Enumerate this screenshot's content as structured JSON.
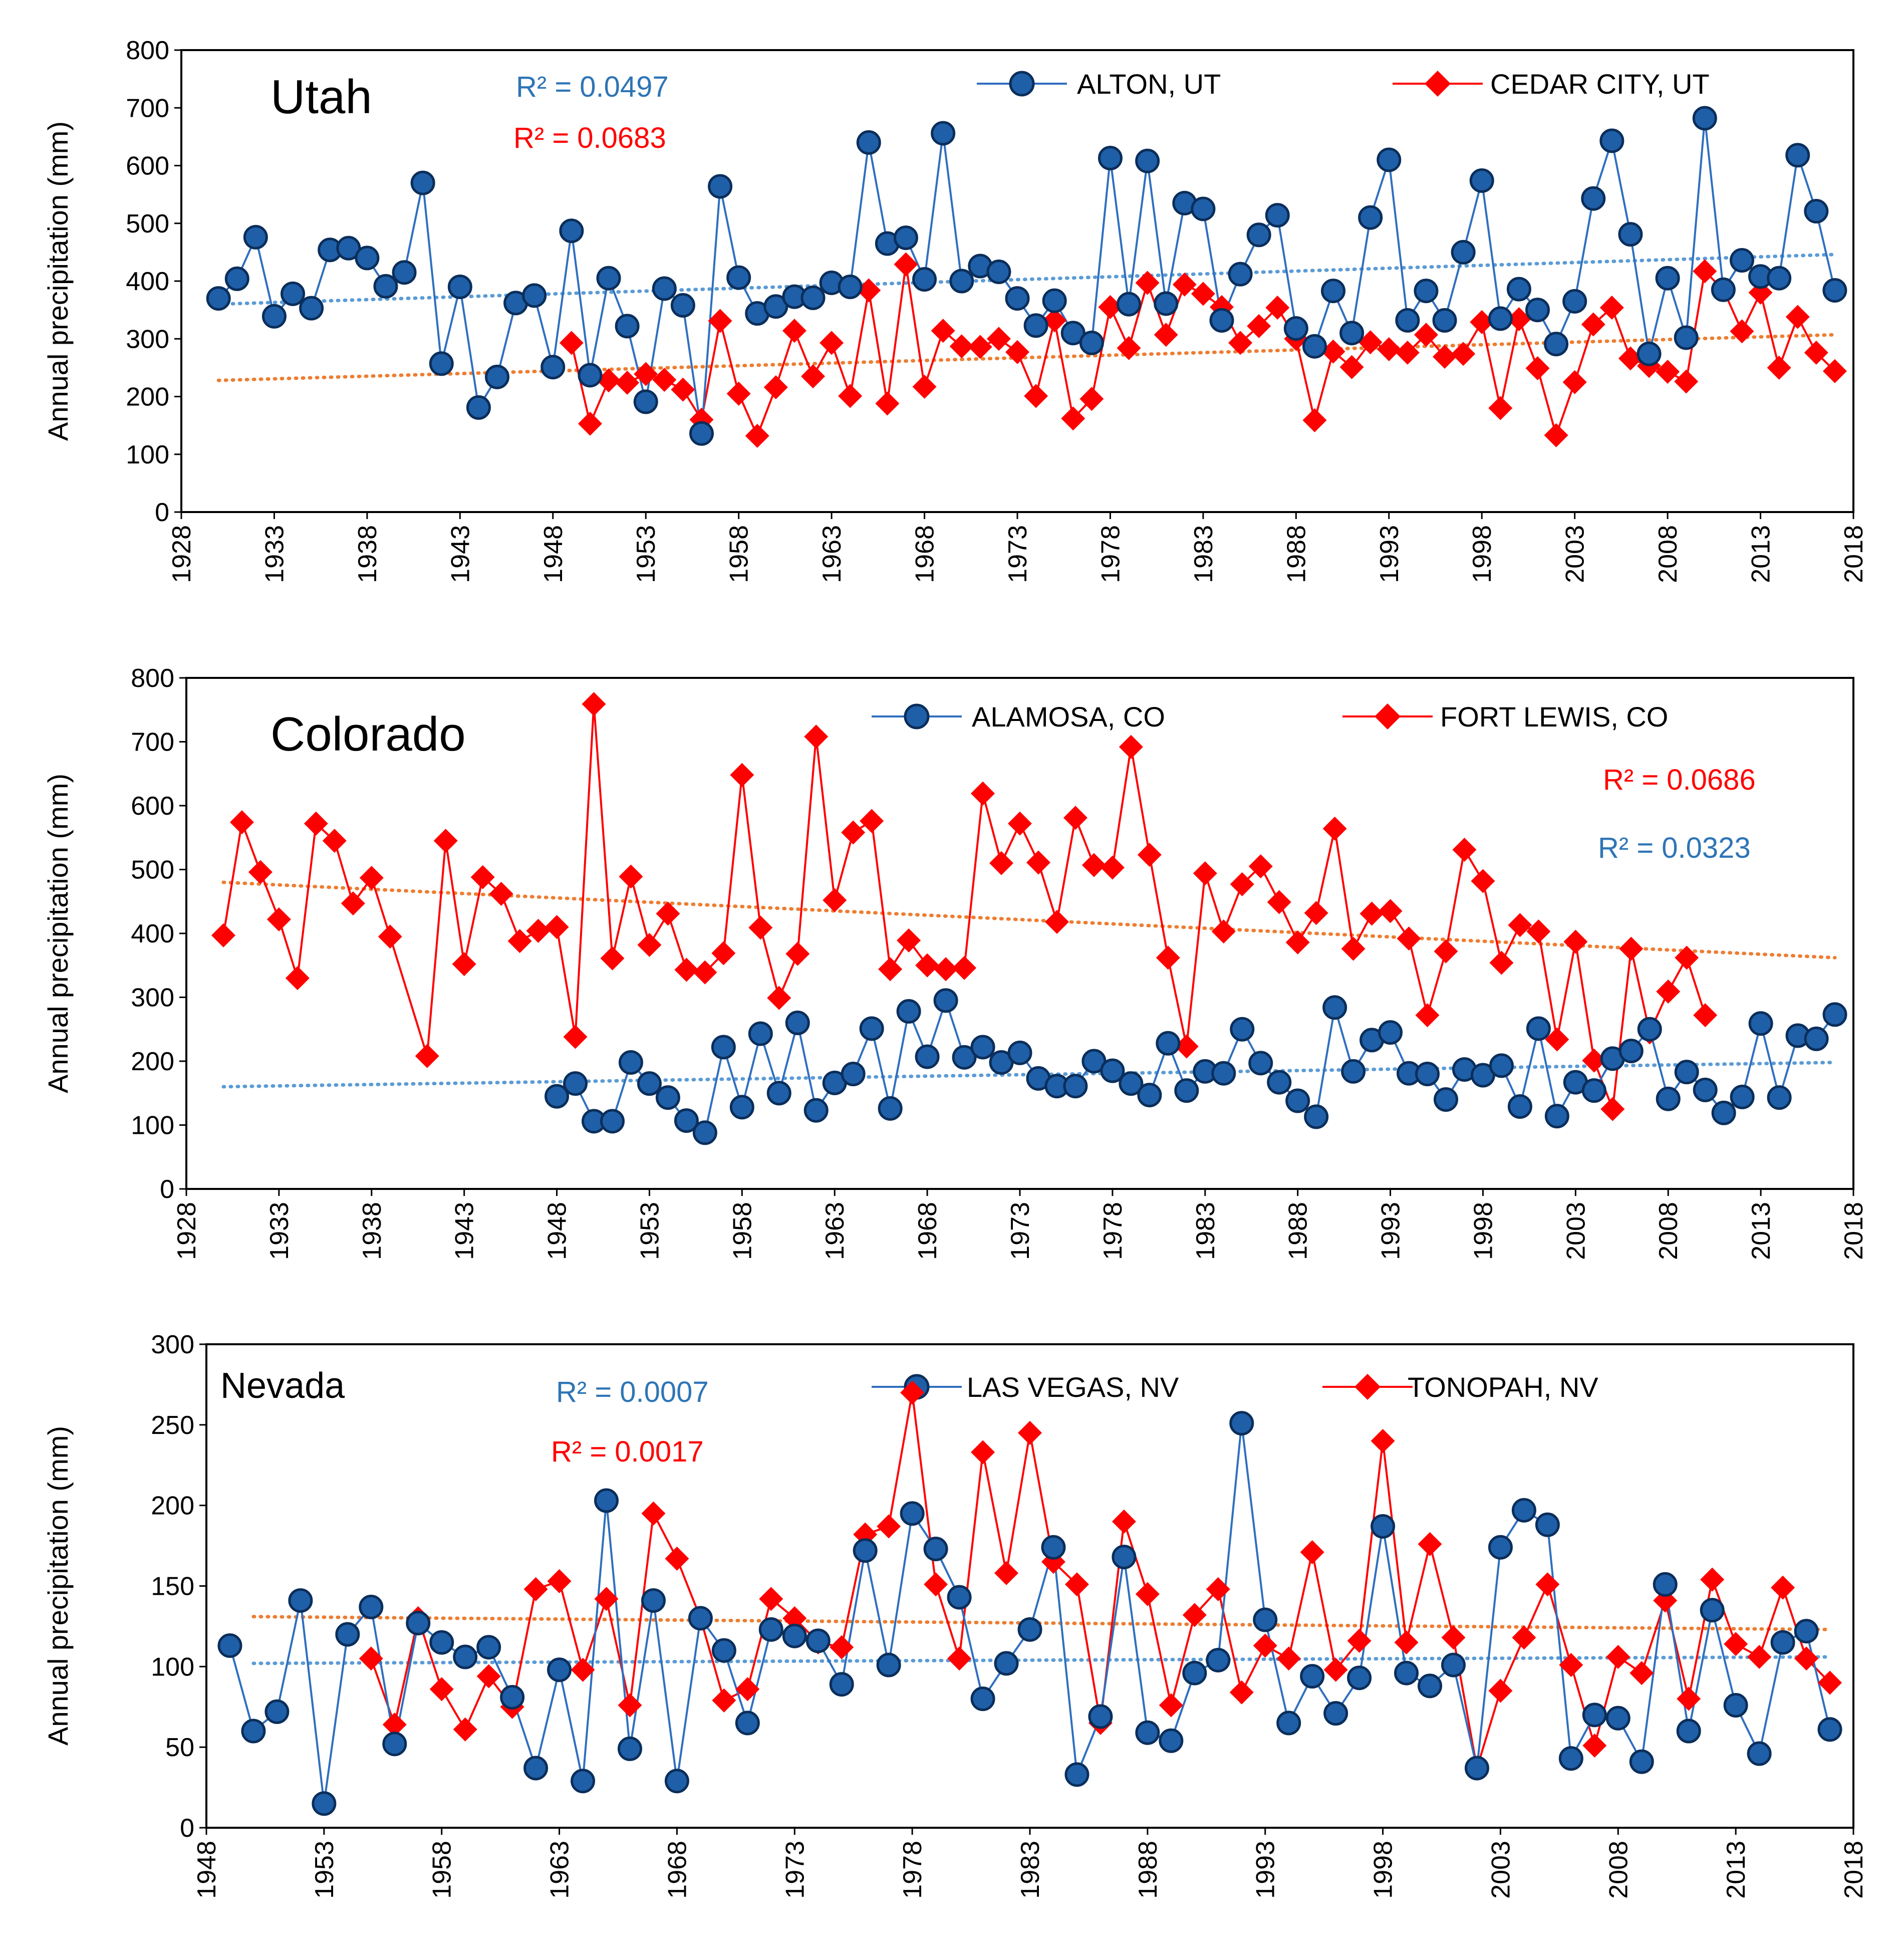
{
  "colors": {
    "blue_line": "#2F6FBF",
    "blue_marker_fill": "#1F5FA8",
    "blue_marker_edge": "#0B2E5A",
    "red": "#FF0000",
    "trend_blue": "#5B9BD5",
    "trend_orange": "#ED7D31",
    "r2_blue": "#2E75B6",
    "r2_red": "#FF0000"
  },
  "chart_data": [
    {
      "type": "line",
      "title": "Utah",
      "xlabel": "",
      "ylabel": "Annual precipitation (mm)",
      "xlim": [
        1928,
        2018
      ],
      "ylim": [
        0,
        800
      ],
      "xticks": [
        "1928",
        "1933",
        "1938",
        "1943",
        "1948",
        "1953",
        "1958",
        "1963",
        "1968",
        "1973",
        "1978",
        "1983",
        "1988",
        "1993",
        "1998",
        "2003",
        "2008",
        "2013",
        "2018"
      ],
      "yticks": [
        "0",
        "100",
        "200",
        "300",
        "400",
        "500",
        "600",
        "700",
        "800"
      ],
      "grid": false,
      "legend_position": "top",
      "series": [
        {
          "name": "ALTON, UT",
          "marker": "circle",
          "r2": "R² = 0.0497",
          "trend_start": 360,
          "trend_end": 446,
          "x": [
            1930,
            1931,
            1932,
            1933,
            1934,
            1935,
            1936,
            1937,
            1938,
            1939,
            1940,
            1941,
            1942,
            1943,
            1944,
            1945,
            1946,
            1947,
            1948,
            1949,
            1950,
            1951,
            1952,
            1953,
            1954,
            1955,
            1956,
            1957,
            1958,
            1959,
            1960,
            1961,
            1962,
            1963,
            1964,
            1965,
            1966,
            1967,
            1968,
            1969,
            1970,
            1971,
            1972,
            1973,
            1974,
            1975,
            1976,
            1977,
            1978,
            1979,
            1980,
            1981,
            1982,
            1983,
            1984,
            1985,
            1986,
            1987,
            1988,
            1989,
            1990,
            1991,
            1992,
            1993,
            1994,
            1995,
            1996,
            1997,
            1998,
            1999,
            2000,
            2001,
            2002,
            2003,
            2004,
            2005,
            2006,
            2007,
            2008,
            2009,
            2010,
            2011,
            2012,
            2013,
            2014,
            2015,
            2016,
            2017
          ],
          "values": [
            370,
            404,
            476,
            339,
            378,
            353,
            454,
            457,
            440,
            391,
            415,
            570,
            257,
            390,
            181,
            234,
            362,
            375,
            251,
            487,
            237,
            405,
            322,
            191,
            387,
            358,
            136,
            564,
            406,
            344,
            356,
            373,
            371,
            397,
            390,
            640,
            465,
            475,
            403,
            656,
            400,
            426,
            416,
            370,
            323,
            366,
            310,
            293,
            613,
            360,
            608,
            361,
            535,
            525,
            332,
            412,
            480,
            514,
            318,
            287,
            383,
            310,
            510,
            610,
            332,
            383,
            332,
            450,
            574,
            335,
            386,
            350,
            291,
            365,
            543,
            643,
            481,
            274,
            405,
            302,
            682,
            385,
            436,
            408,
            405,
            618,
            521,
            384
          ]
        },
        {
          "name": "CEDAR CITY, UT",
          "marker": "diamond",
          "r2": "R² = 0.0683",
          "trend_start": 228,
          "trend_end": 307,
          "x": [
            1949,
            1950,
            1951,
            1952,
            1953,
            1954,
            1955,
            1956,
            1957,
            1958,
            1959,
            1960,
            1961,
            1962,
            1963,
            1964,
            1965,
            1966,
            1967,
            1968,
            1969,
            1970,
            1971,
            1972,
            1973,
            1974,
            1975,
            1976,
            1977,
            1978,
            1979,
            1980,
            1981,
            1982,
            1983,
            1984,
            1985,
            1986,
            1987,
            1988,
            1989,
            1990,
            1991,
            1992,
            1993,
            1994,
            1995,
            1996,
            1997,
            1998,
            1999,
            2000,
            2001,
            2002,
            2003,
            2004,
            2005,
            2006,
            2007,
            2008,
            2009,
            2010,
            2011,
            2012,
            2013,
            2014,
            2015,
            2016,
            2017
          ],
          "values": [
            293,
            153,
            228,
            224,
            239,
            229,
            212,
            160,
            331,
            205,
            132,
            216,
            314,
            235,
            293,
            201,
            384,
            188,
            429,
            217,
            314,
            287,
            286,
            300,
            277,
            201,
            332,
            162,
            196,
            355,
            284,
            397,
            307,
            394,
            378,
            355,
            293,
            322,
            354,
            300,
            159,
            278,
            251,
            294,
            282,
            276,
            307,
            269,
            274,
            329,
            180,
            334,
            249,
            133,
            225,
            325,
            354,
            266,
            253,
            243,
            226,
            417,
            385,
            313,
            380,
            250,
            338,
            276,
            244
          ]
        }
      ]
    },
    {
      "type": "line",
      "title": "Colorado",
      "xlabel": "",
      "ylabel": "Annual precipitation (mm)",
      "xlim": [
        1928,
        2018
      ],
      "ylim": [
        0,
        800
      ],
      "xticks": [
        "1928",
        "1933",
        "1938",
        "1943",
        "1948",
        "1953",
        "1958",
        "1963",
        "1968",
        "1973",
        "1978",
        "1983",
        "1988",
        "1993",
        "1998",
        "2003",
        "2008",
        "2013",
        "2018"
      ],
      "yticks": [
        "0",
        "100",
        "200",
        "300",
        "400",
        "500",
        "600",
        "700",
        "800"
      ],
      "grid": false,
      "legend_position": "top",
      "series": [
        {
          "name": "ALAMOSA, CO",
          "marker": "circle",
          "r2": "R² = 0.0323",
          "trend_start": 160,
          "trend_end": 198,
          "x": [
            1948,
            1949,
            1950,
            1951,
            1952,
            1953,
            1954,
            1955,
            1956,
            1957,
            1958,
            1959,
            1960,
            1961,
            1962,
            1963,
            1964,
            1965,
            1966,
            1967,
            1968,
            1969,
            1970,
            1971,
            1972,
            1973,
            1974,
            1975,
            1976,
            1977,
            1978,
            1979,
            1980,
            1981,
            1982,
            1983,
            1984,
            1985,
            1986,
            1987,
            1988,
            1989,
            1990,
            1991,
            1992,
            1993,
            1994,
            1995,
            1996,
            1997,
            1998,
            1999,
            2000,
            2001,
            2002,
            2003,
            2004,
            2005,
            2006,
            2007,
            2008,
            2009,
            2010,
            2011,
            2012,
            2013,
            2014,
            2015,
            2016,
            2017
          ],
          "values": [
            145,
            165,
            106,
            106,
            198,
            165,
            143,
            107,
            88,
            222,
            128,
            243,
            150,
            260,
            123,
            166,
            180,
            251,
            126,
            278,
            207,
            295,
            206,
            222,
            198,
            213,
            173,
            161,
            161,
            200,
            185,
            165,
            147,
            228,
            154,
            184,
            181,
            250,
            197,
            167,
            138,
            113,
            284,
            184,
            233,
            245,
            181,
            180,
            140,
            187,
            178,
            193,
            129,
            251,
            114,
            167,
            154,
            204,
            216,
            250,
            141,
            183,
            155,
            119,
            144,
            259,
            143,
            240,
            235,
            273
          ]
        },
        {
          "name": "FORT LEWIS, CO",
          "marker": "diamond",
          "r2": "R² = 0.0686",
          "trend_start": 480,
          "trend_end": 362,
          "x": [
            1930,
            1931,
            1932,
            1933,
            1934,
            1935,
            1936,
            1937,
            1938,
            1939,
            1941,
            1942,
            1943,
            1944,
            1945,
            1946,
            1947,
            1948,
            1949,
            1950,
            1951,
            1952,
            1953,
            1954,
            1955,
            1956,
            1957,
            1958,
            1959,
            1960,
            1961,
            1962,
            1963,
            1964,
            1965,
            1966,
            1967,
            1968,
            1969,
            1970,
            1971,
            1972,
            1973,
            1974,
            1975,
            1976,
            1977,
            1978,
            1979,
            1980,
            1981,
            1982,
            1983,
            1984,
            1985,
            1986,
            1987,
            1988,
            1989,
            1990,
            1991,
            1992,
            1993,
            1994,
            1995,
            1996,
            1997,
            1998,
            1999,
            2000,
            2001,
            2002,
            2003,
            2004,
            2005,
            2006,
            2007,
            2008,
            2009,
            2010
          ],
          "values": [
            397,
            574,
            496,
            422,
            330,
            572,
            545,
            447,
            487,
            395,
            208,
            545,
            352,
            488,
            462,
            388,
            404,
            410,
            238,
            759,
            361,
            489,
            382,
            431,
            343,
            339,
            369,
            648,
            409,
            299,
            368,
            708,
            452,
            558,
            576,
            344,
            389,
            350,
            344,
            346,
            619,
            510,
            572,
            511,
            418,
            581,
            507,
            503,
            692,
            523,
            362,
            223,
            494,
            403,
            477,
            505,
            449,
            386,
            432,
            564,
            376,
            431,
            435,
            392,
            272,
            372,
            531,
            482,
            354,
            413,
            403,
            234,
            387,
            201,
            125,
            376,
            245,
            309,
            362,
            272
          ]
        }
      ]
    },
    {
      "type": "line",
      "title": "Nevada",
      "xlabel": "",
      "ylabel": "Annual precipitation (mm)",
      "xlim": [
        1948,
        2018
      ],
      "ylim": [
        0,
        300
      ],
      "xticks": [
        "1948",
        "1953",
        "1958",
        "1963",
        "1968",
        "1973",
        "1978",
        "1983",
        "1988",
        "1993",
        "1998",
        "2003",
        "2008",
        "2013",
        "2018"
      ],
      "yticks": [
        "0",
        "50",
        "100",
        "150",
        "200",
        "250",
        "300"
      ],
      "grid": false,
      "legend_position": "top",
      "series": [
        {
          "name": "LAS VEGAS, NV",
          "marker": "circle",
          "r2": "R² = 0.0007",
          "trend_start": 102,
          "trend_end": 106,
          "x": [
            1949,
            1950,
            1951,
            1952,
            1953,
            1954,
            1955,
            1956,
            1957,
            1958,
            1959,
            1960,
            1961,
            1962,
            1963,
            1964,
            1965,
            1966,
            1967,
            1968,
            1969,
            1970,
            1971,
            1972,
            1973,
            1974,
            1975,
            1976,
            1977,
            1978,
            1979,
            1980,
            1981,
            1982,
            1983,
            1984,
            1985,
            1986,
            1987,
            1988,
            1989,
            1990,
            1991,
            1992,
            1993,
            1994,
            1995,
            1996,
            1997,
            1998,
            1999,
            2000,
            2001,
            2002,
            2003,
            2004,
            2005,
            2006,
            2007,
            2008,
            2009,
            2010,
            2011,
            2012,
            2013,
            2014,
            2015,
            2016,
            2017
          ],
          "values": [
            113,
            60,
            72,
            141,
            15,
            120,
            137,
            52,
            127,
            115,
            106,
            112,
            81,
            37,
            98,
            29,
            203,
            49,
            141,
            29,
            130,
            110,
            65,
            123,
            119,
            116,
            89,
            172,
            101,
            195,
            173,
            143,
            80,
            102,
            123,
            174,
            33,
            69,
            168,
            59,
            54,
            96,
            104,
            251,
            129,
            65,
            94,
            71,
            93,
            187,
            96,
            88,
            101,
            37,
            174,
            197,
            188,
            43,
            70,
            68,
            41,
            151,
            60,
            135,
            76,
            46,
            115,
            122,
            61
          ]
        },
        {
          "name": "TONOPAH, NV",
          "marker": "diamond",
          "r2": "R² = 0.0017",
          "trend_start": 131,
          "trend_end": 123,
          "x": [
            1955,
            1956,
            1957,
            1958,
            1959,
            1960,
            1961,
            1962,
            1963,
            1964,
            1965,
            1966,
            1967,
            1968,
            1969,
            1970,
            1971,
            1972,
            1973,
            1974,
            1975,
            1976,
            1977,
            1978,
            1979,
            1980,
            1981,
            1982,
            1983,
            1984,
            1985,
            1986,
            1987,
            1988,
            1989,
            1990,
            1991,
            1992,
            1993,
            1994,
            1995,
            1996,
            1997,
            1998,
            1999,
            2000,
            2001,
            2002,
            2003,
            2004,
            2005,
            2006,
            2007,
            2008,
            2009,
            2010,
            2011,
            2012,
            2013,
            2014,
            2015,
            2016,
            2017
          ],
          "values": [
            105,
            64,
            130,
            86,
            61,
            94,
            75,
            148,
            153,
            98,
            142,
            76,
            195,
            167,
            130,
            79,
            86,
            142,
            130,
            115,
            112,
            182,
            187,
            270,
            151,
            105,
            233,
            158,
            245,
            165,
            151,
            65,
            190,
            145,
            76,
            132,
            148,
            84,
            113,
            105,
            171,
            98,
            116,
            240,
            115,
            176,
            118,
            37,
            85,
            118,
            151,
            101,
            51,
            106,
            96,
            141,
            80,
            154,
            114,
            106,
            149,
            105,
            90
          ]
        }
      ]
    }
  ]
}
